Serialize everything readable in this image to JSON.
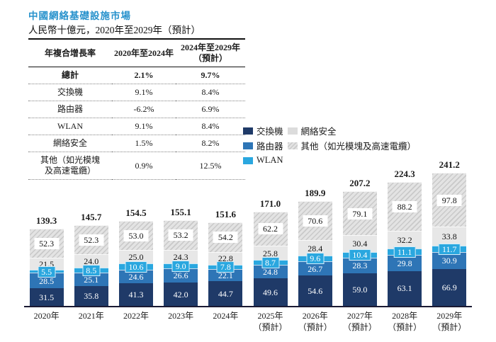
{
  "title": "中國網絡基礎設施市場",
  "subtitle": "人民幣十億元，2020年至2029年（預計）",
  "accent_color": "#2892cc",
  "table": {
    "headers": [
      "年複合增長率",
      "2020年至2024年",
      "2024年至2029年\n（預計）"
    ],
    "rows": [
      {
        "label": "總計",
        "cagr_2020_2024": "2.1%",
        "cagr_2024_2029": "9.7%",
        "bold": true
      },
      {
        "label": "交換機",
        "cagr_2020_2024": "9.1%",
        "cagr_2024_2029": "8.4%",
        "bold": false
      },
      {
        "label": "路由器",
        "cagr_2020_2024": "-6.2%",
        "cagr_2024_2029": "6.9%",
        "bold": false
      },
      {
        "label": "WLAN",
        "cagr_2020_2024": "9.1%",
        "cagr_2024_2029": "8.4%",
        "bold": false
      },
      {
        "label": "網絡安全",
        "cagr_2020_2024": "1.5%",
        "cagr_2024_2029": "8.2%",
        "bold": false
      },
      {
        "label": "其他（如光模塊\n及高速電纜）",
        "cagr_2020_2024": "0.9%",
        "cagr_2024_2029": "12.5%",
        "bold": false
      }
    ]
  },
  "legend": {
    "col1": [
      {
        "label": "交換機",
        "color": "#1f3a68",
        "pattern": "solid"
      },
      {
        "label": "路由器",
        "color": "#2e75b6",
        "pattern": "solid"
      },
      {
        "label": "WLAN",
        "color": "#2aa7df",
        "pattern": "solid"
      }
    ],
    "col2": [
      {
        "label": "網絡安全",
        "color": "#dcdcdc",
        "pattern": "solid"
      },
      {
        "label": "其他（如光模塊及高速電纜）",
        "color": "#e3e3e3",
        "pattern": "diagonal-hatch"
      }
    ]
  },
  "chart_data": {
    "type": "bar",
    "variant": "stacked",
    "unit": "人民幣十億元",
    "categories": [
      "2020年",
      "2021年",
      "2022年",
      "2023年",
      "2024年",
      "2025年\n（預計）",
      "2026年\n（預計）",
      "2027年\n（預計）",
      "2028年\n（預計）",
      "2029年\n（預計）"
    ],
    "series": [
      {
        "name": "交換機",
        "color": "#1f3a68",
        "pattern": "solid",
        "label_style": "white-on-fill",
        "values": [
          31.5,
          35.8,
          41.3,
          42.0,
          44.7,
          49.6,
          54.6,
          59.0,
          63.1,
          66.9
        ]
      },
      {
        "name": "路由器",
        "color": "#2e75b6",
        "pattern": "solid",
        "label_style": "white-on-fill",
        "values": [
          28.5,
          25.1,
          24.6,
          26.6,
          22.1,
          24.8,
          26.7,
          28.3,
          29.8,
          30.9
        ]
      },
      {
        "name": "WLAN",
        "color": "#2aa7df",
        "pattern": "solid",
        "label_style": "white-on-color-patch",
        "values": [
          5.5,
          8.5,
          10.6,
          9.0,
          7.8,
          8.7,
          9.6,
          10.4,
          11.1,
          11.7
        ]
      },
      {
        "name": "網絡安全",
        "color": "#e7e7e7",
        "pattern": "solid",
        "label_style": "black-plain",
        "values": [
          21.5,
          24.0,
          25.0,
          24.3,
          22.8,
          25.8,
          28.4,
          30.4,
          32.2,
          33.8
        ]
      },
      {
        "name": "其他（如光模塊及高速電纜）",
        "color": "#e3e3e3",
        "pattern": "diagonal-hatch",
        "label_style": "black-on-white-box",
        "values": [
          52.3,
          52.3,
          53.0,
          53.2,
          54.2,
          62.2,
          70.6,
          79.1,
          88.2,
          97.8
        ]
      }
    ],
    "totals": [
      139.3,
      145.7,
      154.5,
      155.1,
      151.6,
      171.0,
      189.9,
      207.2,
      224.3,
      241.2
    ],
    "ylim": [
      0,
      250
    ],
    "grid": false,
    "legend_position": "right-of-table"
  }
}
